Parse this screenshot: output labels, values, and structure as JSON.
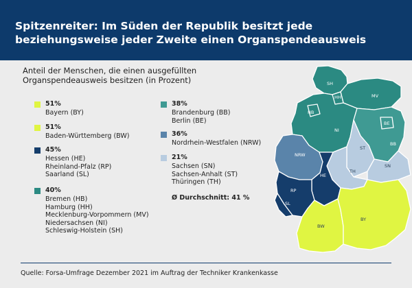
{
  "title": "Spitzenreiter: Im Süden der Republik besitzt jede beziehungsweise jeder Zweite einen Organspendeausweis",
  "subtitle": "Anteil der Menschen, die einen ausgefüllten Organspendeausweis besitzen (in Prozent)",
  "colors": {
    "header_bg": "#0d3a6b",
    "c51": "#e0f542",
    "c45": "#153d6b",
    "c40": "#2b8a82",
    "c38": "#3f9a93",
    "c36": "#5a84aa",
    "c21": "#b8cce0"
  },
  "legend": {
    "g51a": {
      "percent": "51%",
      "names": [
        "Bayern (BY)"
      ]
    },
    "g51b": {
      "percent": "51%",
      "names": [
        "Baden-Württemberg (BW)"
      ]
    },
    "g45": {
      "percent": "45%",
      "names": [
        "Hessen (HE)",
        "Rheinland-Pfalz (RP)",
        "Saarland (SL)"
      ]
    },
    "g40": {
      "percent": "40%",
      "names": [
        "Bremen (HB)",
        "Hamburg (HH)",
        "Mecklenburg-Vorpommern (MV)",
        "Niedersachsen (NI)",
        "Schleswig-Holstein (SH)"
      ]
    },
    "g38": {
      "percent": "38%",
      "names": [
        "Brandenburg (BB)",
        "Berlin (BE)"
      ]
    },
    "g36": {
      "percent": "36%",
      "names": [
        "Nordrhein-Westfalen (NRW)"
      ]
    },
    "g21": {
      "percent": "21%",
      "names": [
        "Sachsen (SN)",
        "Sachsen-Anhalt (ST)",
        "Thüringen (TH)"
      ]
    }
  },
  "average": "Ø Durchschnitt: 41 %",
  "map_labels": {
    "SH": "SH",
    "HH": "HH",
    "MV": "MV",
    "HB": "HB",
    "NI": "NI",
    "BE": "BE",
    "BB": "BB",
    "ST": "ST",
    "NRW": "NRW",
    "SN": "SN",
    "TH": "TH",
    "HE": "HE",
    "RP": "RP",
    "SL": "SL",
    "BW": "BW",
    "BY": "BY"
  },
  "source": "Quelle: Forsa-Umfrage Dezember 2021 im Auftrag der Techniker Krankenkasse"
}
